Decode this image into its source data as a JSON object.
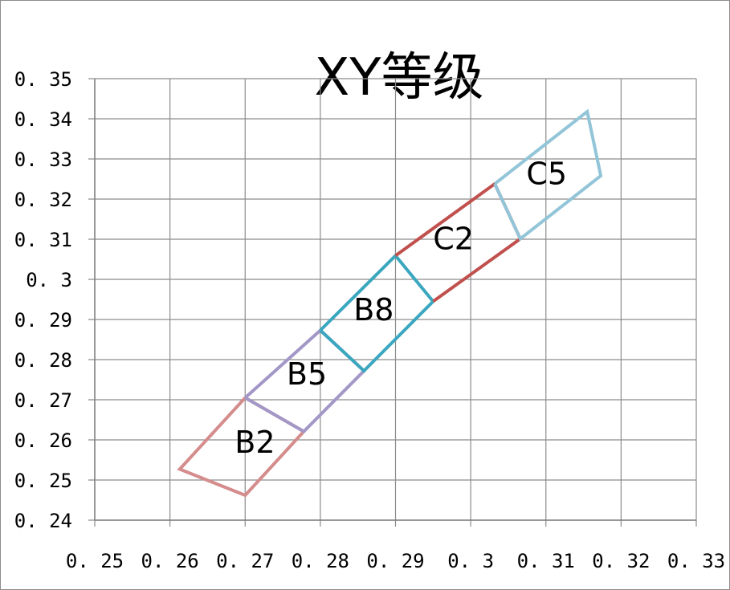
{
  "chart_data": {
    "type": "scatter",
    "title": "XY等级",
    "xlabel": "",
    "ylabel": "",
    "xlim": [
      0.25,
      0.33
    ],
    "ylim": [
      0.24,
      0.35
    ],
    "x_ticks": [
      "0. 25",
      "0. 26",
      "0. 27",
      "0. 28",
      "0. 29",
      "0. 3",
      "0. 31",
      "0. 32",
      "0. 33"
    ],
    "y_ticks": [
      "0. 24",
      "0. 25",
      "0. 26",
      "0. 27",
      "0. 28",
      "0. 29",
      "0. 3",
      "0. 31",
      "0. 32",
      "0. 33",
      "0. 34",
      "0. 35"
    ],
    "grid": true,
    "series": [
      {
        "name": "B2",
        "color": "#d48c8c",
        "points": [
          [
            0.27,
            0.2705
          ],
          [
            0.2778,
            0.2621
          ],
          [
            0.27,
            0.2462
          ],
          [
            0.2613,
            0.2527
          ],
          [
            0.27,
            0.2705
          ]
        ]
      },
      {
        "name": "B5",
        "color": "#a397c7",
        "points": [
          [
            0.27,
            0.2705
          ],
          [
            0.28,
            0.2873
          ],
          [
            0.2858,
            0.2772
          ],
          [
            0.2778,
            0.2621
          ],
          [
            0.27,
            0.2705
          ]
        ]
      },
      {
        "name": "B8",
        "color": "#3aa7bf",
        "points": [
          [
            0.28,
            0.2873
          ],
          [
            0.29,
            0.3059
          ],
          [
            0.295,
            0.2945
          ],
          [
            0.2858,
            0.2772
          ],
          [
            0.28,
            0.2873
          ]
        ]
      },
      {
        "name": "C2",
        "color": "#c0504d",
        "points": [
          [
            0.29,
            0.3059
          ],
          [
            0.3032,
            0.3238
          ],
          [
            0.3066,
            0.3101
          ],
          [
            0.295,
            0.2945
          ]
        ]
      },
      {
        "name": "C5",
        "color": "#93c5d8",
        "points": [
          [
            0.3032,
            0.3238
          ],
          [
            0.3155,
            0.3418
          ],
          [
            0.3173,
            0.3258
          ],
          [
            0.3066,
            0.3101
          ],
          [
            0.3032,
            0.3238
          ]
        ]
      }
    ],
    "region_labels": [
      {
        "text": "B2",
        "x": 0.2713,
        "y": 0.2568
      },
      {
        "text": "B5",
        "x": 0.2782,
        "y": 0.2738
      },
      {
        "text": "B8",
        "x": 0.2871,
        "y": 0.2898
      },
      {
        "text": "C2",
        "x": 0.2977,
        "y": 0.3075
      },
      {
        "text": "C5",
        "x": 0.3101,
        "y": 0.3237
      }
    ]
  }
}
